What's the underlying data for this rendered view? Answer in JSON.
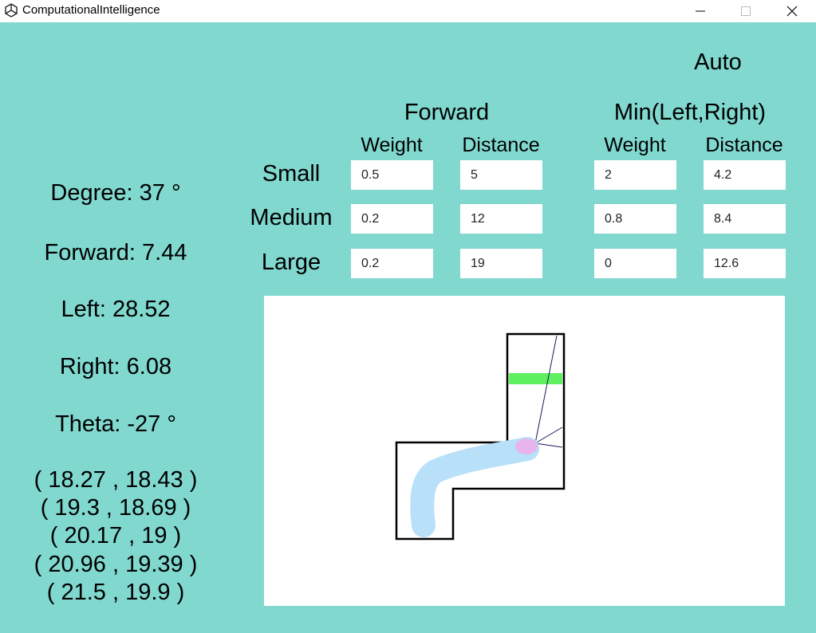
{
  "window": {
    "title": "ComputationalIntelligence"
  },
  "mode_label": "Auto",
  "groups": {
    "forward": "Forward",
    "min_lr": "Min(Left,Right)"
  },
  "columns": {
    "fwd_weight": "Weight",
    "fwd_distance": "Distance",
    "lr_weight": "Weight",
    "lr_distance": "Distance"
  },
  "rows": [
    {
      "label": "Small",
      "fwd_weight": "0.5",
      "fwd_distance": "5",
      "lr_weight": "2",
      "lr_distance": "4.2"
    },
    {
      "label": "Medium",
      "fwd_weight": "0.2",
      "fwd_distance": "12",
      "lr_weight": "0.8",
      "lr_distance": "8.4"
    },
    {
      "label": "Large",
      "fwd_weight": "0.2",
      "fwd_distance": "19",
      "lr_weight": "0",
      "lr_distance": "12.6"
    }
  ],
  "stats": {
    "degree": "Degree: 37 °",
    "forward": "Forward: 7.44",
    "left": "Left: 28.52",
    "right": "Right: 6.08",
    "theta": "Theta: -27 °"
  },
  "trajectory": [
    "( 18.27 , 18.43 )",
    "( 19.3 , 18.69 )",
    "( 20.17 , 19 )",
    "( 20.96 , 19.39 )",
    "( 21.5 , 19.9 )"
  ],
  "colors": {
    "background": "#80d8cf",
    "finish_line": "#5ef05e",
    "car_trail": "#b8e0f8",
    "car_head": "#e8b4ec",
    "sensor_rays": "#1a1a5a"
  }
}
